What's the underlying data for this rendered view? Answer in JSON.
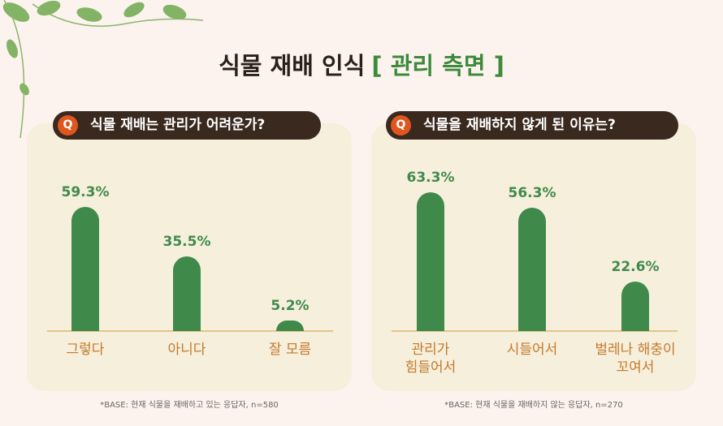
{
  "title": "식물 재배 인식",
  "title_highlight": "[ 관리 측면 ]",
  "chart_data": [
    {
      "type": "bar",
      "question_mark": "Q",
      "title": "식물 재배는 관리가 어려운가?",
      "categories": [
        "그렇다",
        "아니다",
        "잘 모름"
      ],
      "values": [
        59.3,
        35.5,
        5.2
      ],
      "value_labels": [
        "59.3%",
        "35.5%",
        "5.2%"
      ],
      "color": "#3f8a4b",
      "note": "*BASE: 현재 식물을 재배하고 있는 응답자, n=580"
    },
    {
      "type": "bar",
      "question_mark": "Q",
      "title": "식물을 재배하지 않게 된 이유는?",
      "categories": [
        "관리가\n힘들어서",
        "시들어서",
        "벌레나 해충이\n꼬여서"
      ],
      "values": [
        63.3,
        56.3,
        22.6
      ],
      "value_labels": [
        "63.3%",
        "56.3%",
        "22.6%"
      ],
      "color": "#3f8a4b",
      "note": "*BASE: 현재 식물을 재배하지 않는 응답자, n=270"
    }
  ]
}
